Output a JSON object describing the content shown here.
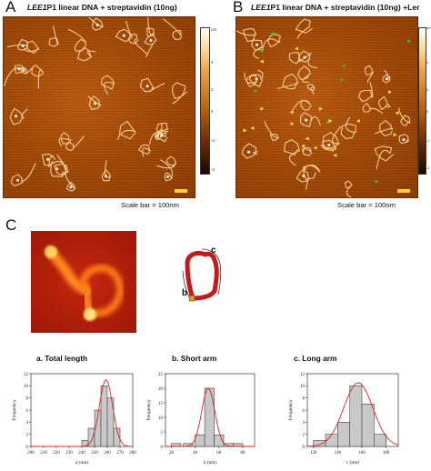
{
  "panel_a": {
    "letter": "A",
    "title_prefix": "LEE1",
    "title_rest": "P1 linear DNA + streptavidin (10ng)",
    "colorbar_unit": "nm",
    "colorbar_ticks": [
      "4",
      "2",
      "0",
      "-2",
      "-4"
    ],
    "scale_text": "Scale bar = 100nm"
  },
  "panel_b": {
    "letter": "B",
    "title_prefix": "LEE1",
    "title_rest": "P1 linear DNA + streptavidin (10ng) +Ler",
    "colorbar_unit": "nm",
    "colorbar_ticks": [
      "4",
      "2",
      "0",
      "-2",
      "-4"
    ],
    "scale_text": "Scale bar = 100nm"
  },
  "panel_c": {
    "letter": "C",
    "diagram_labels": {
      "b": "b",
      "c": "c"
    },
    "colors": {
      "dna": "#c21a1a",
      "marker": "#d89a2e",
      "fit_curve": "#d62424",
      "bar": "#c8c8c8"
    }
  },
  "chart_data": [
    {
      "type": "bar",
      "title": "a. Total length",
      "xlabel": "a (nm)",
      "ylabel": "Frequency",
      "x_ticks": [
        200,
        210,
        220,
        230,
        240,
        250,
        260,
        270,
        280
      ],
      "y_ticks": [
        0,
        2,
        4,
        6,
        8,
        10,
        12
      ],
      "xlim": [
        200,
        280
      ],
      "ylim": [
        0,
        12
      ],
      "bins": [
        242.5,
        247.5,
        252.5,
        257.5,
        262.5,
        267.5
      ],
      "bin_width": 5,
      "values": [
        1,
        3,
        6,
        10,
        8,
        3
      ],
      "fit": {
        "type": "gaussian",
        "mean": 259,
        "sd": 5.2,
        "peak": 11
      }
    },
    {
      "type": "bar",
      "title": "b. Short arm",
      "xlabel": "b (nm)",
      "ylabel": "Frequency",
      "x_ticks": [
        20,
        40,
        60,
        80
      ],
      "y_ticks": [
        0,
        5,
        10,
        15,
        20,
        25
      ],
      "xlim": [
        15,
        90
      ],
      "ylim": [
        0,
        25
      ],
      "bins": [
        24,
        34,
        44,
        52,
        60,
        68,
        76
      ],
      "bin_width": 8,
      "values": [
        1,
        1,
        4,
        20,
        4,
        1,
        1
      ],
      "fit": {
        "type": "gaussian",
        "mean": 51,
        "sd": 5.5,
        "peak": 20
      }
    },
    {
      "type": "bar",
      "title": "c. Long arm",
      "xlabel": "c (nm)",
      "ylabel": "Frequency",
      "x_ticks": [
        120,
        140,
        160,
        180
      ],
      "y_ticks": [
        0,
        2,
        4,
        6,
        8,
        10,
        12
      ],
      "xlim": [
        115,
        190
      ],
      "ylim": [
        0,
        12
      ],
      "bins": [
        125,
        135,
        145,
        155,
        165,
        175
      ],
      "bin_width": 10,
      "values": [
        1,
        2,
        4,
        10,
        7,
        2
      ],
      "fit": {
        "type": "gaussian",
        "mean": 157,
        "sd": 12,
        "peak": 10.5
      }
    }
  ]
}
